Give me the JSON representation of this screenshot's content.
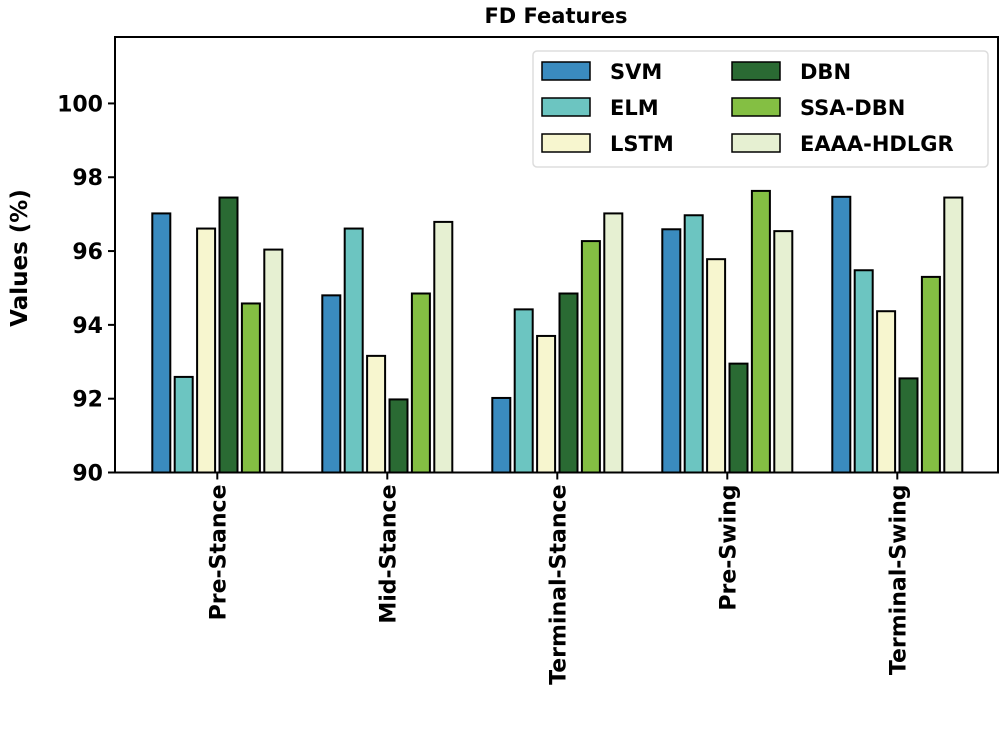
{
  "chart_data": {
    "type": "bar",
    "title": "FD Features",
    "xlabel": "",
    "ylabel": "Values (%)",
    "ylim": [
      90,
      101.8
    ],
    "yticks": [
      90,
      92,
      94,
      96,
      98,
      100
    ],
    "grid": false,
    "legend_position": "top-right",
    "legend_columns": 2,
    "categories": [
      "Pre-Stance",
      "Mid-Stance",
      "Terminal-Stance",
      "Pre-Swing",
      "Terminal-Swing"
    ],
    "series": [
      {
        "name": "SVM",
        "color": "#3a8bbf",
        "values": [
          97.02,
          94.8,
          92.02,
          96.59,
          97.47
        ]
      },
      {
        "name": "ELM",
        "color": "#6cc5c1",
        "values": [
          92.59,
          96.61,
          94.42,
          96.97,
          95.48
        ]
      },
      {
        "name": "LSTM",
        "color": "#f7f6cf",
        "values": [
          96.61,
          93.16,
          93.7,
          95.78,
          94.37
        ]
      },
      {
        "name": "DBN",
        "color": "#2a6a33",
        "values": [
          97.45,
          91.98,
          94.85,
          92.95,
          92.55
        ]
      },
      {
        "name": "SSA-DBN",
        "color": "#84bf43",
        "values": [
          94.58,
          94.85,
          96.27,
          97.63,
          95.3
        ]
      },
      {
        "name": "EAAA-HDLGR",
        "color": "#e6f0d2",
        "values": [
          96.04,
          96.79,
          97.02,
          96.54,
          97.45
        ]
      }
    ]
  }
}
